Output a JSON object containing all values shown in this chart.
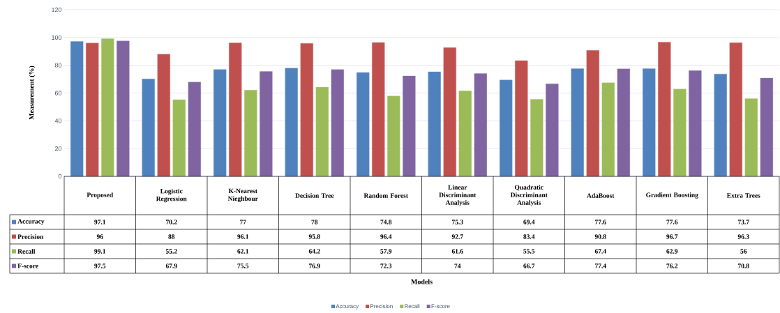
{
  "chart_data": {
    "type": "bar",
    "annotations": [
      "Models"
    ],
    "ylabel": "Measurement (%)",
    "categories": [
      "Proposed",
      "Logistic Regression",
      "K-Nearest Nieghbour",
      "Decision Tree",
      "Random Forest",
      "Linear Discriminant Analysis",
      "Quadratic Discriminant Analysis",
      "AdaBoost",
      "Gradient Boosting",
      "Extra Trees"
    ],
    "series": [
      {
        "name": "Accuracy",
        "color": "#4f81bd",
        "values": [
          97.1,
          70.2,
          77,
          78,
          74.8,
          75.3,
          69.4,
          77.6,
          77.6,
          73.7
        ]
      },
      {
        "name": "Precision",
        "color": "#c0504d",
        "values": [
          96,
          88,
          96.1,
          95.8,
          96.4,
          92.7,
          83.4,
          90.8,
          96.7,
          96.3
        ]
      },
      {
        "name": "Recall",
        "color": "#9bbb59",
        "values": [
          99.1,
          55.2,
          62.1,
          64.2,
          57.9,
          61.6,
          55.5,
          67.4,
          62.9,
          56
        ]
      },
      {
        "name": "F-score",
        "color": "#8064a2",
        "values": [
          97.5,
          67.9,
          75.5,
          76.9,
          72.3,
          74,
          66.7,
          77.4,
          76.2,
          70.8
        ]
      }
    ],
    "ylim": [
      0,
      120
    ],
    "yticks": [
      0,
      20,
      40,
      60,
      80,
      100,
      120
    ],
    "grid": "y",
    "legend": "bottom",
    "data_labels": true
  }
}
